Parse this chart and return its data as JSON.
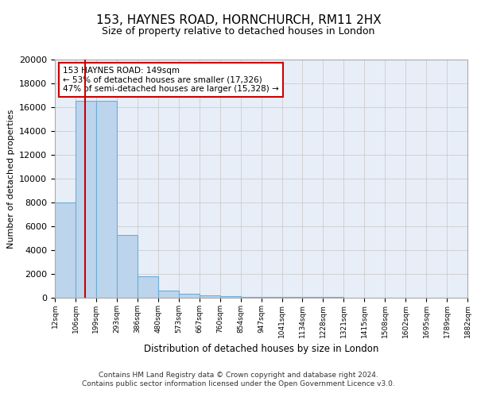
{
  "title": "153, HAYNES ROAD, HORNCHURCH, RM11 2HX",
  "subtitle": "Size of property relative to detached houses in London",
  "xlabel": "Distribution of detached houses by size in London",
  "ylabel": "Number of detached properties",
  "footer_line1": "Contains HM Land Registry data © Crown copyright and database right 2024.",
  "footer_line2": "Contains public sector information licensed under the Open Government Licence v3.0.",
  "bin_edges": [
    12,
    106,
    199,
    293,
    386,
    480,
    573,
    667,
    760,
    854,
    947,
    1041,
    1134,
    1228,
    1321,
    1415,
    1508,
    1602,
    1695,
    1789,
    1882
  ],
  "bar_heights": [
    8000,
    16500,
    16500,
    5300,
    1800,
    600,
    350,
    200,
    150,
    100,
    80,
    60,
    50,
    40,
    30,
    25,
    20,
    15,
    10,
    8
  ],
  "bar_color": "#bdd4ed",
  "bar_edgecolor": "#6baed6",
  "red_line_x": 149,
  "annotation_text": "153 HAYNES ROAD: 149sqm\n← 53% of detached houses are smaller (17,326)\n47% of semi-detached houses are larger (15,328) →",
  "annotation_box_color": "#ffffff",
  "annotation_border_color": "#cc0000",
  "ylim": [
    0,
    20000
  ],
  "yticks": [
    0,
    2000,
    4000,
    6000,
    8000,
    10000,
    12000,
    14000,
    16000,
    18000,
    20000
  ],
  "grid_color": "#cccccc",
  "background_color": "#e8eef8"
}
